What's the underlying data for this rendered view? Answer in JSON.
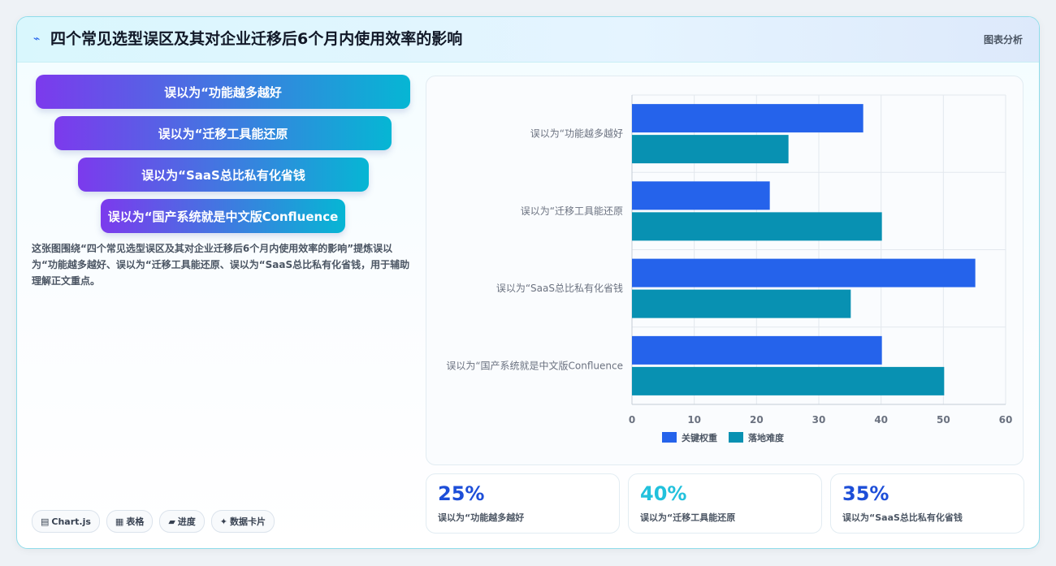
{
  "header": {
    "icon": "sparkline-icon",
    "title": "四个常见选型误区及其对企业迁移后6个月内使用效率的影响",
    "tag": "图表分析"
  },
  "funnel": [
    "误以为“功能越多越好",
    "误以为“迁移工具能还原",
    "误以为“SaaS总比私有化省钱",
    "误以为“国产系统就是中文版Confluence"
  ],
  "description": "这张图围绕“四个常见选型误区及其对企业迁移后6个月内使用效率的影响”提炼误以为“功能越多越好、误以为“迁移工具能还原、误以为“SaaS总比私有化省钱，用于辅助理解正文重点。",
  "chips": [
    {
      "icon": "chart-icon",
      "glyph": "▤",
      "label": "Chart.js"
    },
    {
      "icon": "table-icon",
      "glyph": "▦",
      "label": "表格"
    },
    {
      "icon": "progress-icon",
      "glyph": "▰",
      "label": "进度"
    },
    {
      "icon": "sparkle-icon",
      "glyph": "✦",
      "label": "数据卡片"
    }
  ],
  "chart_data": {
    "type": "bar",
    "orientation": "horizontal",
    "categories": [
      "误以为“功能越多越好",
      "误以为“迁移工具能还原",
      "误以为“SaaS总比私有化省钱",
      "误以为“国产系统就是中文版Confluence"
    ],
    "series": [
      {
        "name": "关键权重",
        "values": [
          37,
          22,
          55,
          40
        ],
        "color": "#2563eb"
      },
      {
        "name": "落地难度",
        "values": [
          25,
          40,
          35,
          50
        ],
        "color": "#0891b2"
      }
    ],
    "xlim": [
      0,
      60
    ],
    "xticks": [
      0,
      10,
      20,
      30,
      40,
      50,
      60
    ],
    "grid": true,
    "legend": "bottom"
  },
  "stats": [
    {
      "value": "25%",
      "label": "误以为“功能越多越好",
      "color": "#1d4ed8"
    },
    {
      "value": "40%",
      "label": "误以为“迁移工具能还原",
      "color": "#22c1dc"
    },
    {
      "value": "35%",
      "label": "误以为“SaaS总比私有化省钱",
      "color": "#1d4ed8"
    }
  ]
}
